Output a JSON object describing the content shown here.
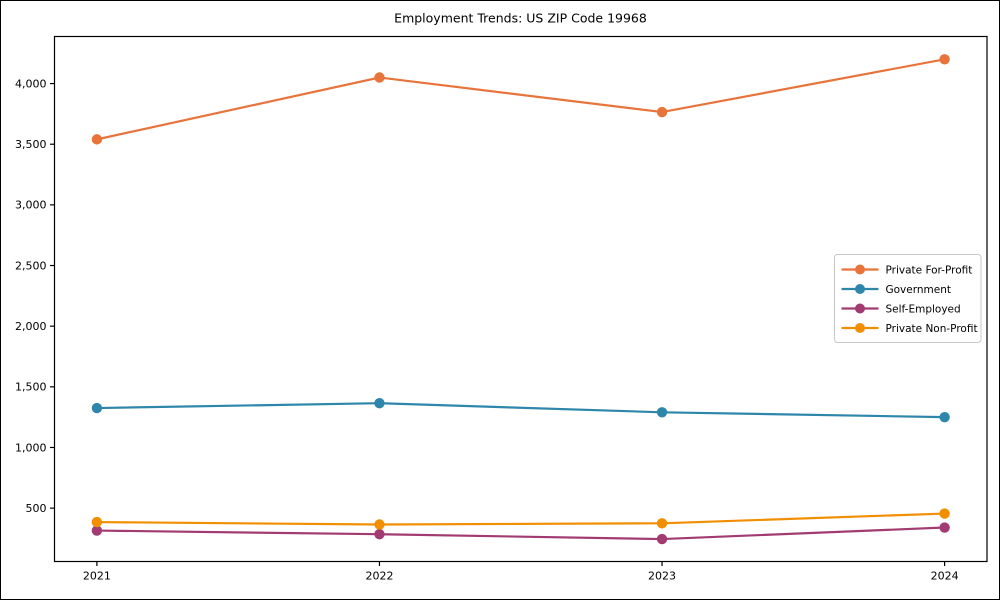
{
  "figure": {
    "background": "#ffffff",
    "spine_color": "#000000",
    "legend_border_color": "#c8c8c8"
  },
  "chart_data": {
    "type": "line",
    "title": "Employment Trends: US ZIP Code 19968",
    "xlabel": "",
    "ylabel": "",
    "categories": [
      2021,
      2022,
      2023,
      2024
    ],
    "series": [
      {
        "name": "Private For-Profit",
        "color": "#E8743B",
        "values": [
          3540,
          4050,
          3765,
          4200
        ]
      },
      {
        "name": "Government",
        "color": "#2E86AB",
        "values": [
          1325,
          1365,
          1290,
          1250
        ]
      },
      {
        "name": "Self-Employed",
        "color": "#A23B72",
        "values": [
          315,
          285,
          245,
          340
        ]
      },
      {
        "name": "Private Non-Profit",
        "color": "#F18F01",
        "values": [
          385,
          365,
          375,
          455
        ]
      }
    ],
    "xlim": [
      2020.85,
      2024.15
    ],
    "ylim": [
      60,
      4388
    ],
    "xticks": {
      "values": [
        2021,
        2022,
        2023,
        2024
      ],
      "labels": [
        "2021",
        "2022",
        "2023",
        "2024"
      ]
    },
    "yticks": {
      "values": [
        500,
        1000,
        1500,
        2000,
        2500,
        3000,
        3500,
        4000
      ],
      "labels": [
        "500",
        "1,000",
        "1,500",
        "2,000",
        "2,500",
        "3,000",
        "3,500",
        "4,000"
      ]
    },
    "grid": false,
    "marker": "circle",
    "legend_position": "center right"
  }
}
